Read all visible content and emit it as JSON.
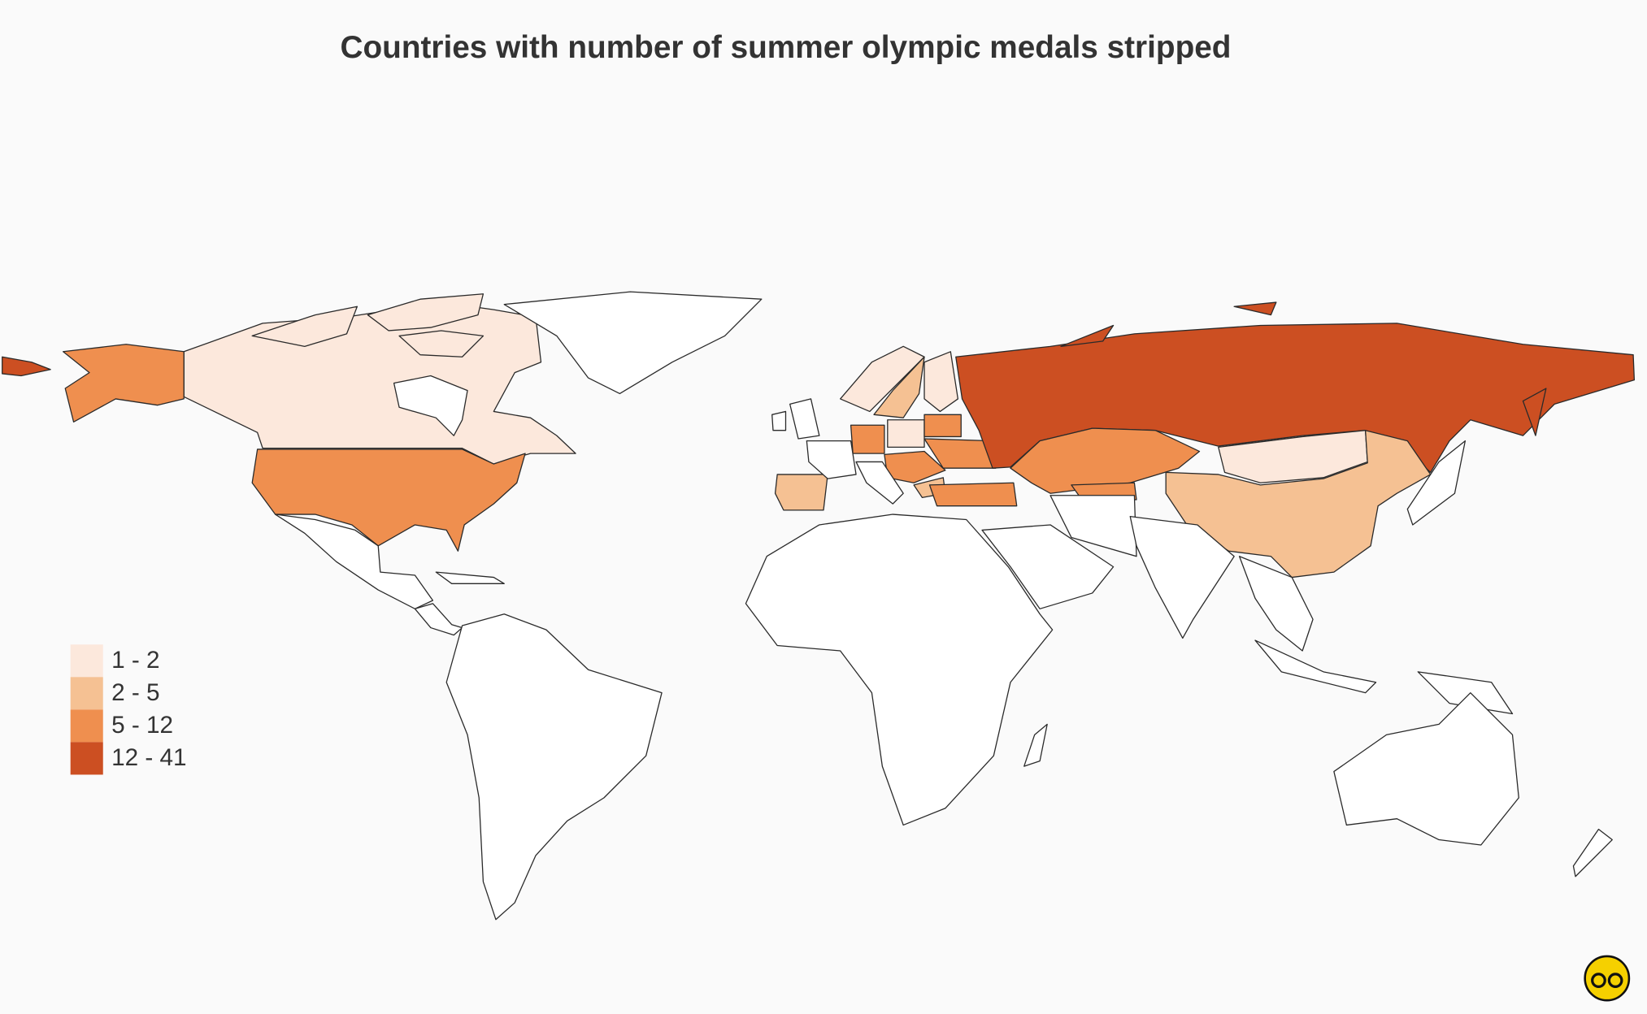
{
  "header": {
    "title": "Countries with number of summer olympic medals stripped"
  },
  "legend": {
    "items": [
      {
        "label": "1 - 2",
        "color": "#fce8dc"
      },
      {
        "label": "2 - 5",
        "color": "#f5c193"
      },
      {
        "label": "5 - 12",
        "color": "#ef8f4f"
      },
      {
        "label": "12 - 41",
        "color": "#cc4f22"
      }
    ]
  }
}
